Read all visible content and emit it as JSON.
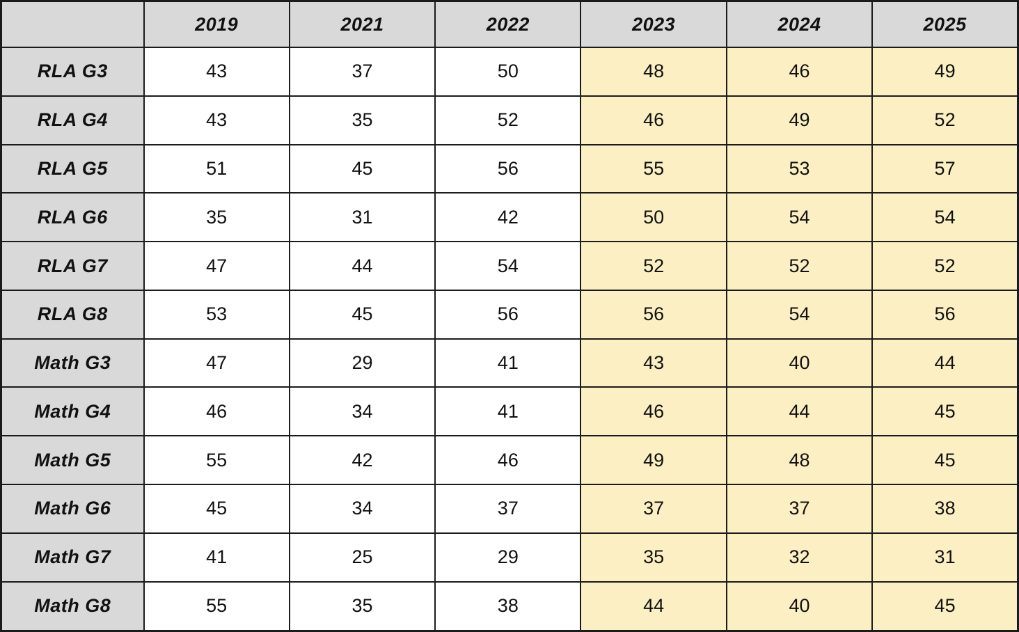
{
  "table": {
    "corner_label": "",
    "columns": [
      "2019",
      "2021",
      "2022",
      "2023",
      "2024",
      "2025"
    ],
    "highlighted_columns": [
      "2023",
      "2024",
      "2025"
    ],
    "rows": [
      {
        "label": "RLA G3",
        "values": [
          43,
          37,
          50,
          48,
          46,
          49
        ]
      },
      {
        "label": "RLA G4",
        "values": [
          43,
          35,
          52,
          46,
          49,
          52
        ]
      },
      {
        "label": "RLA G5",
        "values": [
          51,
          45,
          56,
          55,
          53,
          57
        ]
      },
      {
        "label": "RLA G6",
        "values": [
          35,
          31,
          42,
          50,
          54,
          54
        ]
      },
      {
        "label": "RLA G7",
        "values": [
          47,
          44,
          54,
          52,
          52,
          52
        ]
      },
      {
        "label": "RLA G8",
        "values": [
          53,
          45,
          56,
          56,
          54,
          56
        ]
      },
      {
        "label": "Math G3",
        "values": [
          47,
          29,
          41,
          43,
          40,
          44
        ]
      },
      {
        "label": "Math G4",
        "values": [
          46,
          34,
          41,
          46,
          44,
          45
        ]
      },
      {
        "label": "Math G5",
        "values": [
          55,
          42,
          46,
          49,
          48,
          45
        ]
      },
      {
        "label": "Math G6",
        "values": [
          45,
          34,
          37,
          37,
          37,
          38
        ]
      },
      {
        "label": "Math G7",
        "values": [
          41,
          25,
          29,
          35,
          32,
          31
        ]
      },
      {
        "label": "Math G8",
        "values": [
          55,
          35,
          38,
          44,
          40,
          45
        ]
      }
    ],
    "colors": {
      "header_bg": "#d9d9d9",
      "label_bg": "#d9d9d9",
      "highlight_bg": "#fcefc3",
      "cell_bg": "#ffffff",
      "border": "#1b1b1b",
      "text": "#111111"
    }
  },
  "chart_data": {
    "type": "table",
    "title": "",
    "categories": [
      "2019",
      "2021",
      "2022",
      "2023",
      "2024",
      "2025"
    ],
    "series": [
      {
        "name": "RLA G3",
        "values": [
          43,
          37,
          50,
          48,
          46,
          49
        ]
      },
      {
        "name": "RLA G4",
        "values": [
          43,
          35,
          52,
          46,
          49,
          52
        ]
      },
      {
        "name": "RLA G5",
        "values": [
          51,
          45,
          56,
          55,
          53,
          57
        ]
      },
      {
        "name": "RLA G6",
        "values": [
          35,
          31,
          42,
          50,
          54,
          54
        ]
      },
      {
        "name": "RLA G7",
        "values": [
          47,
          44,
          54,
          52,
          52,
          52
        ]
      },
      {
        "name": "RLA G8",
        "values": [
          53,
          45,
          56,
          56,
          54,
          56
        ]
      },
      {
        "name": "Math G3",
        "values": [
          47,
          29,
          41,
          43,
          40,
          44
        ]
      },
      {
        "name": "Math G4",
        "values": [
          46,
          34,
          41,
          46,
          44,
          45
        ]
      },
      {
        "name": "Math G5",
        "values": [
          55,
          42,
          46,
          49,
          48,
          45
        ]
      },
      {
        "name": "Math G6",
        "values": [
          45,
          34,
          37,
          37,
          37,
          38
        ]
      },
      {
        "name": "Math G7",
        "values": [
          41,
          25,
          29,
          35,
          32,
          31
        ]
      },
      {
        "name": "Math G8",
        "values": [
          55,
          35,
          38,
          44,
          40,
          45
        ]
      }
    ],
    "layout_hints": {
      "highlighted_year_columns": [
        "2023",
        "2024",
        "2025"
      ],
      "grid": true,
      "header_style": "bold-italic"
    }
  }
}
